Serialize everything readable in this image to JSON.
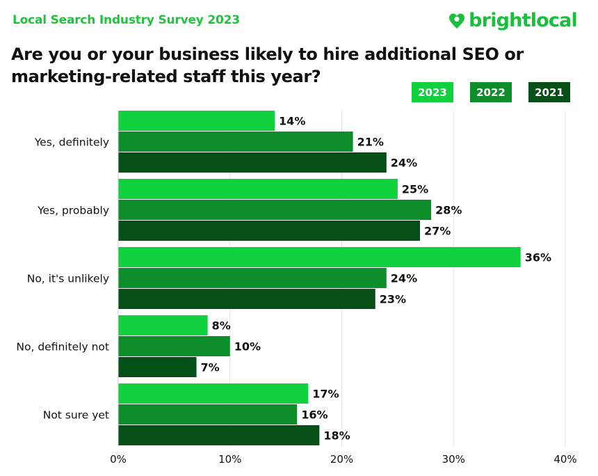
{
  "header": {
    "survey_title": "Local Search Industry Survey 2023",
    "brand": "brightlocal",
    "question": "Are you or your business likely to hire additional SEO or marketing-related staff this year?"
  },
  "colors": {
    "brand": "#17c03a",
    "series_2023": "#12d13f",
    "series_2022": "#0d8e2a",
    "series_2021": "#064f16"
  },
  "chart_data": {
    "type": "bar",
    "orientation": "horizontal",
    "title": "Are you or your business likely to hire additional SEO or marketing-related staff this year?",
    "categories": [
      "Yes, definitely",
      "Yes, probably",
      "No, it's unlikely",
      "No, definitely not",
      "Not sure yet"
    ],
    "series": [
      {
        "name": "2023",
        "color": "#12d13f",
        "values": [
          14,
          25,
          36,
          8,
          17
        ]
      },
      {
        "name": "2022",
        "color": "#0d8e2a",
        "values": [
          21,
          28,
          24,
          10,
          16
        ]
      },
      {
        "name": "2021",
        "color": "#064f16",
        "values": [
          24,
          27,
          23,
          7,
          18
        ]
      }
    ],
    "xlim": [
      0,
      40
    ],
    "xticks": [
      0,
      10,
      20,
      30,
      40
    ],
    "tick_labels": [
      "0%",
      "10%",
      "20%",
      "30%",
      "40%"
    ],
    "value_suffix": "%",
    "grid": true,
    "legend_position": "top-right"
  }
}
